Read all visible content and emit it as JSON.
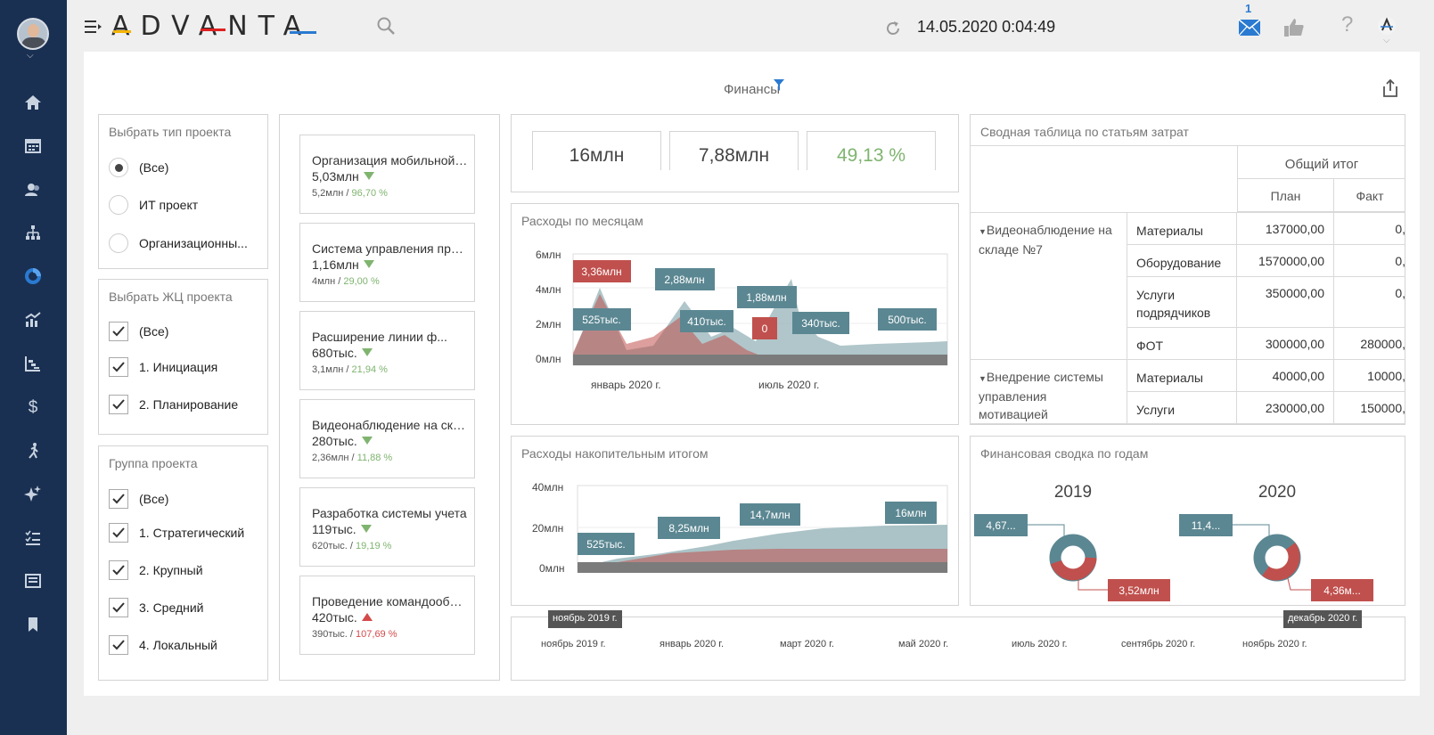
{
  "topbar": {
    "brand": "ADVANTA",
    "datetime": "14.05.2020 0:04:49",
    "mail_count": "1",
    "help": "?"
  },
  "page": {
    "title": "Финансы"
  },
  "filters": {
    "project_type": {
      "title": "Выбрать тип проекта",
      "options": [
        "(Все)",
        "ИТ проект",
        "Организационны..."
      ],
      "selected": "(Все)"
    },
    "lifecycle": {
      "title": "Выбрать ЖЦ проекта",
      "options": [
        "(Все)",
        "1. Инициация",
        "2. Планирование"
      ]
    },
    "group": {
      "title": "Группа проекта",
      "options": [
        "(Все)",
        "1. Стратегический",
        "2. Крупный",
        "3. Средний",
        "4. Локальный"
      ]
    }
  },
  "projects": [
    {
      "name": "Организация мобильной ...",
      "value": "5,03млн",
      "trend": "down",
      "plan": "5,2млн",
      "pct": "96,70 %",
      "pct_color": "#7fb46f"
    },
    {
      "name": "Система управления проектами",
      "value": "1,16млн",
      "trend": "down",
      "plan": "4млн",
      "pct": "29,00 %",
      "pct_color": "#7fb46f"
    },
    {
      "name": "Расширение линии ф...",
      "value": "680тыс.",
      "trend": "down",
      "plan": "3,1млн",
      "pct": "21,94 %",
      "pct_color": "#7fb46f"
    },
    {
      "name": "Видеонаблюдение на складе",
      "value": "280тыс.",
      "trend": "down",
      "plan": "2,36млн",
      "pct": "11,88 %",
      "pct_color": "#7fb46f"
    },
    {
      "name": "Разработка системы учета",
      "value": "119тыс.",
      "trend": "down",
      "plan": "620тыс.",
      "pct": "19,19 %",
      "pct_color": "#7fb46f"
    },
    {
      "name": "Проведение командообразования",
      "value": "420тыс.",
      "trend": "up",
      "plan": "390тыс.",
      "pct": "107,69 %",
      "pct_color": "#d44a4a"
    }
  ],
  "kpis": [
    {
      "value": "16млн",
      "color": "#444"
    },
    {
      "value": "7,88млн",
      "color": "#444"
    },
    {
      "value": "49,13 %",
      "color": "#7fb46f"
    }
  ],
  "monthly": {
    "title": "Расходы по месяцам",
    "yticks": [
      "6млн",
      "4млн",
      "2млн",
      "0млн"
    ],
    "xticks": [
      "январь 2020 г.",
      "июль 2020 г."
    ],
    "labels": [
      {
        "text": "3,36млн",
        "color": "#c0504d"
      },
      {
        "text": "525тыс.",
        "color": "#5b8792"
      },
      {
        "text": "2,88млн",
        "color": "#5b8792"
      },
      {
        "text": "410тыс.",
        "color": "#5b8792"
      },
      {
        "text": "1,88млн",
        "color": "#5b8792"
      },
      {
        "text": "0",
        "color": "#c0504d"
      },
      {
        "text": "340тыс.",
        "color": "#5b8792"
      },
      {
        "text": "500тыс.",
        "color": "#5b8792"
      }
    ]
  },
  "cumulative": {
    "title": "Расходы накопительным итогом",
    "yticks": [
      "40млн",
      "20млн",
      "0млн"
    ],
    "labels": [
      "525тыс.",
      "8,25млн",
      "14,7млн",
      "16млн"
    ]
  },
  "pivot": {
    "title": "Сводная таблица по статьям затрат",
    "total": "Общий итог",
    "plan": "План",
    "fact": "Факт",
    "groups": [
      {
        "name": "Видеонаблюдение на складе №7",
        "rows": [
          [
            "Материалы",
            "137000,00",
            "0,"
          ],
          [
            "Оборудование",
            "1570000,00",
            "0,"
          ],
          [
            "Услуги подрядчиков",
            "350000,00",
            "0,"
          ],
          [
            "ФОТ",
            "300000,00",
            "280000,"
          ]
        ]
      },
      {
        "name": "Внедрение системы управления мотивацией",
        "rows": [
          [
            "Материалы",
            "40000,00",
            "10000,"
          ],
          [
            "Услуги",
            "230000,00",
            "150000,"
          ]
        ]
      }
    ]
  },
  "yearly": {
    "title": "Финансовая сводка по годам",
    "years": [
      {
        "year": "2019",
        "fact": "4,67...",
        "plan": "3,52млн"
      },
      {
        "year": "2020",
        "fact": "11,4...",
        "plan": "4,36м..."
      }
    ]
  },
  "timeline": {
    "start": "ноябрь 2019 г.",
    "end": "декабрь 2020 г.",
    "ticks": [
      "ноябрь 2019 г.",
      "январь 2020 г.",
      "март 2020 г.",
      "май 2020 г.",
      "июль 2020 г.",
      "сентябрь 2020 г.",
      "ноябрь 2020 г."
    ]
  },
  "icons": {
    "nav": [
      "home-icon",
      "calendar-icon",
      "users-icon",
      "org-chart-icon",
      "pie-chart-icon",
      "analytics-icon",
      "gantt-icon",
      "dollar-icon",
      "runner-icon",
      "sparkle-icon",
      "checklist-icon",
      "news-icon",
      "bookmark-icon"
    ]
  }
}
